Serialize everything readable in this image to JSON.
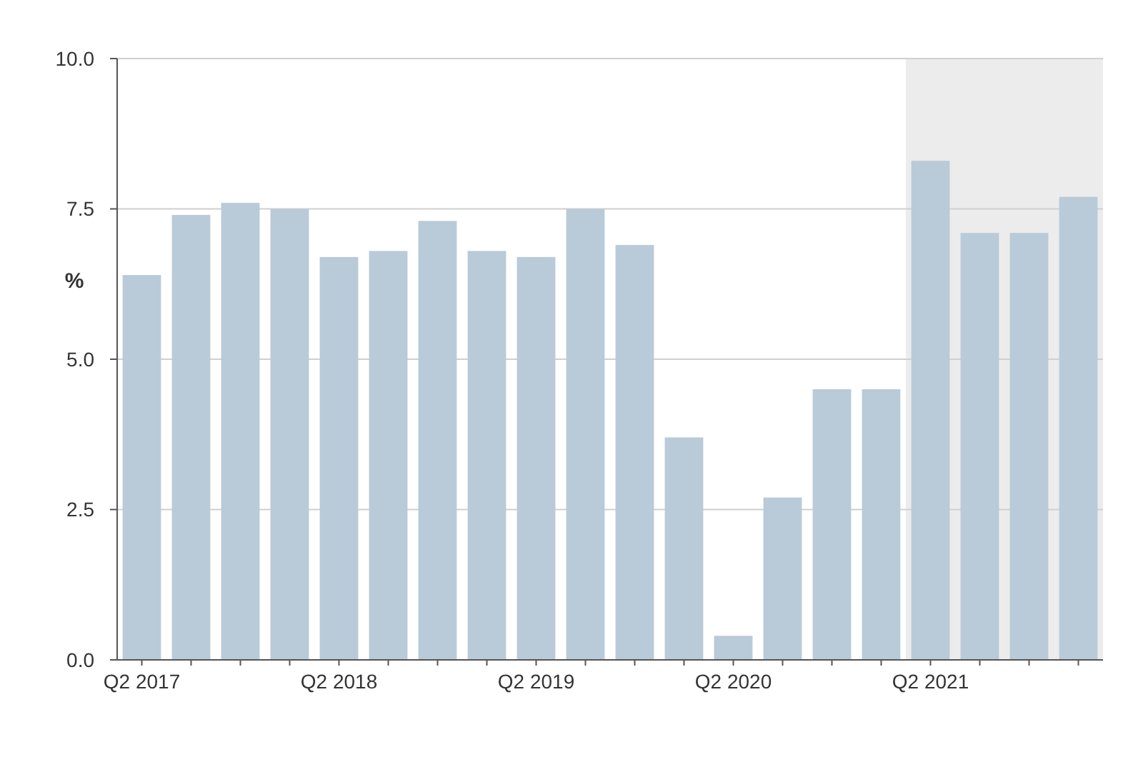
{
  "chart_data": {
    "type": "bar",
    "ylabel": "%",
    "categories": [
      "Q2 2017",
      null,
      null,
      null,
      "Q2 2018",
      null,
      null,
      null,
      "Q2 2019",
      null,
      null,
      null,
      "Q2 2020",
      null,
      null,
      null,
      "Q2 2021",
      null,
      null,
      null
    ],
    "values": [
      6.4,
      7.4,
      7.6,
      7.5,
      6.7,
      6.8,
      7.3,
      6.8,
      6.7,
      7.5,
      6.9,
      3.7,
      0.4,
      2.7,
      4.5,
      4.5,
      8.3,
      7.1,
      7.1,
      7.7
    ],
    "color": "#b9cad9",
    "ylim": [
      0,
      10
    ],
    "yticks": [
      {
        "value": 0,
        "label": "0.0"
      },
      {
        "value": 2.5,
        "label": "2.5"
      },
      {
        "value": 5,
        "label": "5.0"
      },
      {
        "value": 7.5,
        "label": "7.5"
      },
      {
        "value": 10,
        "label": "10.0"
      }
    ],
    "grid": "y"
  }
}
